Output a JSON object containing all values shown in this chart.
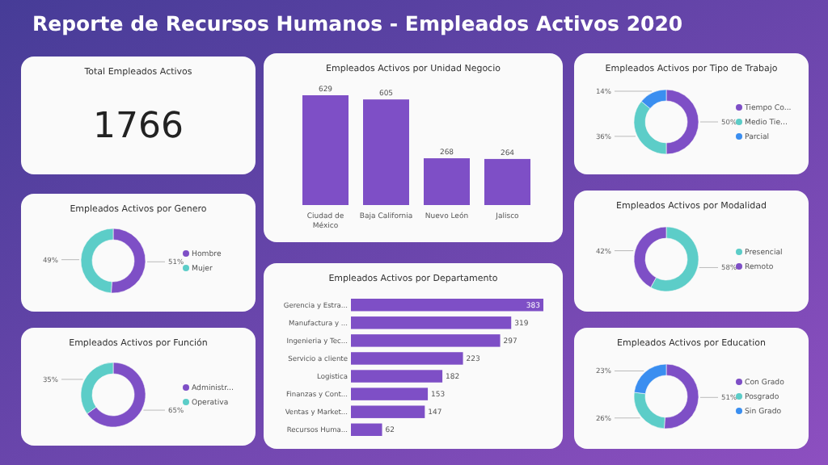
{
  "chart_data": [
    {
      "type": "other",
      "title": "Reporte de Recursos Humanos - Empleados Activos 2020"
    },
    {
      "type": "other",
      "title": "Total Empleados Activos",
      "values": [
        1766
      ],
      "data_labels": true
    },
    {
      "type": "bar",
      "title": "Empleados Activos por Unidad Negocio",
      "categories": [
        "Ciudad de México",
        "Baja California",
        "Nuevo León",
        "Jalisco"
      ],
      "values": [
        629,
        605,
        268,
        264
      ],
      "color": "#7e4fc6",
      "data_labels": true
    },
    {
      "type": "donut",
      "title": "Empleados Activos por Tipo de Trabajo",
      "categories": [
        "Tiempo Co...",
        "Medio Tie...",
        "Parcial"
      ],
      "values": [
        50,
        36,
        14
      ],
      "colors": [
        "#7e4fc6",
        "#5ccdc8",
        "#3a8ef0"
      ],
      "value_labels": [
        "50%",
        "36%",
        "14%"
      ],
      "legend": "right"
    },
    {
      "type": "donut",
      "title": "Empleados Activos por Genero",
      "categories": [
        "Hombre",
        "Mujer"
      ],
      "values": [
        51,
        49
      ],
      "colors": [
        "#7e4fc6",
        "#5ccdc8"
      ],
      "value_labels": [
        "51%",
        "49%"
      ],
      "legend": "right"
    },
    {
      "type": "bar",
      "orientation": "horizontal",
      "title": "Empleados Activos por Departamento",
      "categories": [
        "Gerencia y Estra...",
        "Manufactura y ...",
        "Ingenieria y Tec...",
        "Servicio a cliente",
        "Logistica",
        "Finanzas y Cont...",
        "Ventas y Market...",
        "Recursos Huma..."
      ],
      "values": [
        383,
        319,
        297,
        223,
        182,
        153,
        147,
        62
      ],
      "color": "#7e4fc6",
      "data_labels": true
    },
    {
      "type": "donut",
      "title": "Empleados Activos por Modalidad",
      "categories": [
        "Presencial",
        "Remoto"
      ],
      "values": [
        58,
        42
      ],
      "colors": [
        "#5ccdc8",
        "#7e4fc6"
      ],
      "value_labels": [
        "58%",
        "42%"
      ],
      "legend": "right"
    },
    {
      "type": "donut",
      "title": "Empleados Activos por Función",
      "categories": [
        "Administr...",
        "Operativa"
      ],
      "values": [
        65,
        35
      ],
      "colors": [
        "#7e4fc6",
        "#5ccdc8"
      ],
      "value_labels": [
        "65%",
        "35%"
      ],
      "legend": "right"
    },
    {
      "type": "donut",
      "title": "Empleados Activos por Education",
      "categories": [
        "Con Grado",
        "Posgrado",
        "Sin Grado"
      ],
      "values": [
        51,
        26,
        23
      ],
      "colors": [
        "#7e4fc6",
        "#5ccdc8",
        "#3a8ef0"
      ],
      "value_labels": [
        "51%",
        "26%",
        "23%"
      ],
      "legend": "right"
    }
  ]
}
